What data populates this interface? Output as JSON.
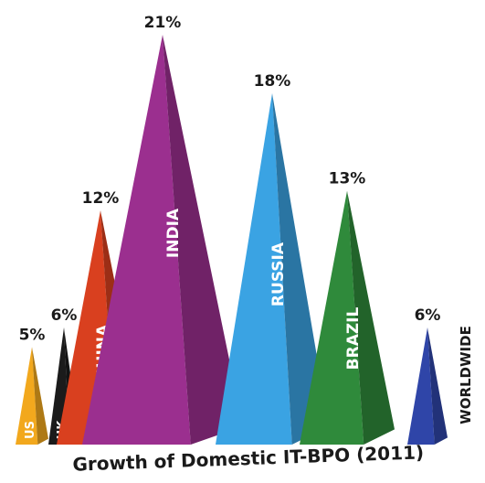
{
  "chart_data": {
    "type": "bar",
    "title": "Growth of Domestic IT-BPO (2011)",
    "categories": [
      "US",
      "UK",
      "CHINA",
      "INDIA",
      "RUSSIA",
      "BRAZIL",
      "WORLDWIDE"
    ],
    "values": [
      5,
      6,
      12,
      21,
      18,
      13,
      6
    ],
    "value_labels": [
      "5%",
      "6%",
      "12%",
      "21%",
      "18%",
      "13%",
      "6%"
    ],
    "colors": [
      "#f2a81d",
      "#1b1b1b",
      "#d9401f",
      "#9b2f8f",
      "#3aa3e3",
      "#2f8a3b",
      "#2f45a8"
    ],
    "grid": false,
    "legend": "none"
  }
}
